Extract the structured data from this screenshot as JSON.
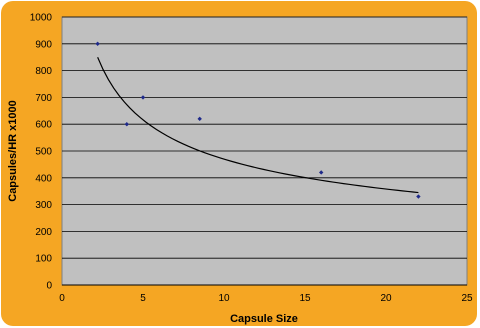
{
  "chart_data": {
    "type": "scatter",
    "title": "",
    "xlabel": "Capsule Size",
    "ylabel": "Capsules/HR x1000",
    "xlim": [
      0,
      25
    ],
    "ylim": [
      0,
      1000
    ],
    "x_ticks": [
      0,
      5,
      10,
      15,
      20,
      25
    ],
    "y_ticks": [
      0,
      100,
      200,
      300,
      400,
      500,
      600,
      700,
      800,
      900,
      1000
    ],
    "grid": "horizontal",
    "legend": "none",
    "series": [
      {
        "marker_color": "#1f2a8a",
        "points": [
          {
            "x": 2.2,
            "y": 900
          },
          {
            "x": 4.0,
            "y": 600
          },
          {
            "x": 5.0,
            "y": 700
          },
          {
            "x": 8.5,
            "y": 620
          },
          {
            "x": 16.0,
            "y": 420
          },
          {
            "x": 22.0,
            "y": 330
          }
        ]
      }
    ],
    "trendline": {
      "type": "power",
      "color": "#000000",
      "x_range": [
        2.2,
        22.0
      ],
      "y_range": [
        850,
        345
      ]
    },
    "colors": {
      "frame": "#f5a623",
      "plot_background": "#c0c0c0",
      "gridline": "#000000"
    }
  }
}
